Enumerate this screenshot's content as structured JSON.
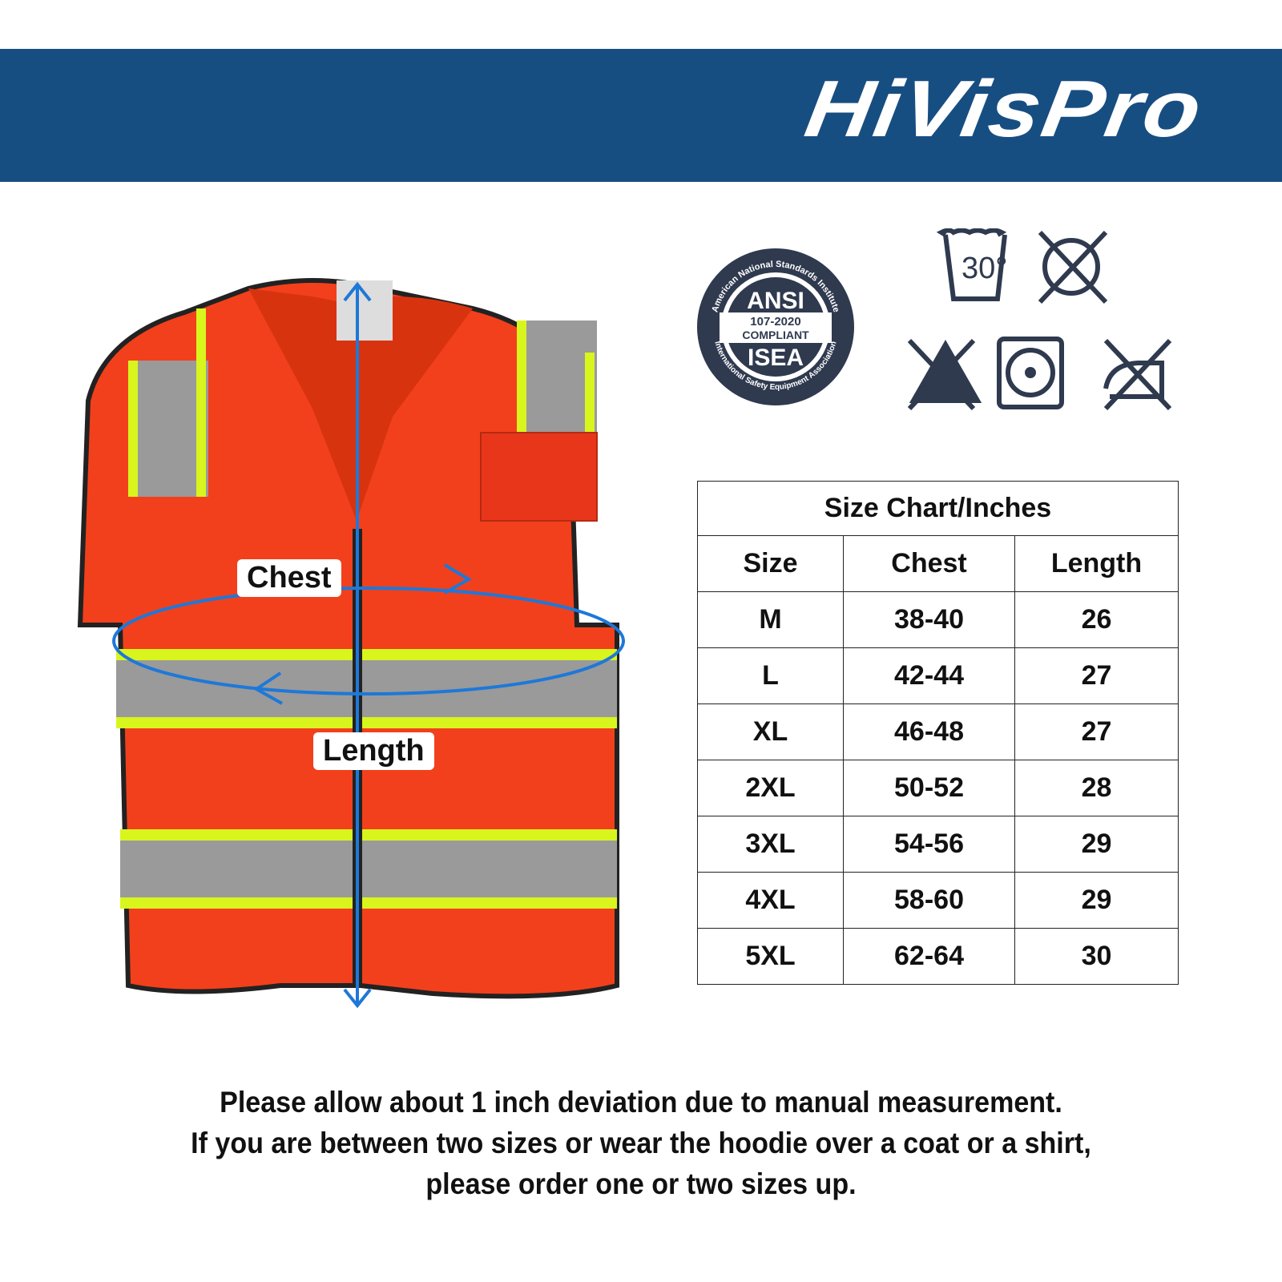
{
  "brand": {
    "logo_text": "HiVisPro",
    "banner_color": "#174e82"
  },
  "certification": {
    "ring_top": "American National Standards Institute",
    "ring_bottom": "International Safety Equipment Association",
    "line1": "ANSI",
    "line2": "107-2020",
    "line3": "COMPLIANT",
    "line4": "ISEA"
  },
  "care_icons": [
    {
      "icon": "wash-30-icon",
      "text": "30°"
    },
    {
      "icon": "do-not-dryclean-icon"
    },
    {
      "icon": "do-not-bleach-icon"
    },
    {
      "icon": "tumble-dry-icon"
    },
    {
      "icon": "do-not-iron-icon"
    }
  ],
  "vest": {
    "chest_label": "Chest",
    "length_label": "Length",
    "color": "#f2401c",
    "stripe_color": "#d8f51e"
  },
  "size_chart": {
    "title": "Size Chart/Inches",
    "headers": [
      "Size",
      "Chest",
      "Length"
    ],
    "rows": [
      [
        "M",
        "38-40",
        "26"
      ],
      [
        "L",
        "42-44",
        "27"
      ],
      [
        "XL",
        "46-48",
        "27"
      ],
      [
        "2XL",
        "50-52",
        "28"
      ],
      [
        "3XL",
        "54-56",
        "29"
      ],
      [
        "4XL",
        "58-60",
        "29"
      ],
      [
        "5XL",
        "62-64",
        "30"
      ]
    ]
  },
  "notes": [
    "Please allow about 1 inch deviation due to manual measurement.",
    "If you are between two sizes or wear the hoodie over a coat or a shirt,",
    "please order one or two sizes up."
  ]
}
